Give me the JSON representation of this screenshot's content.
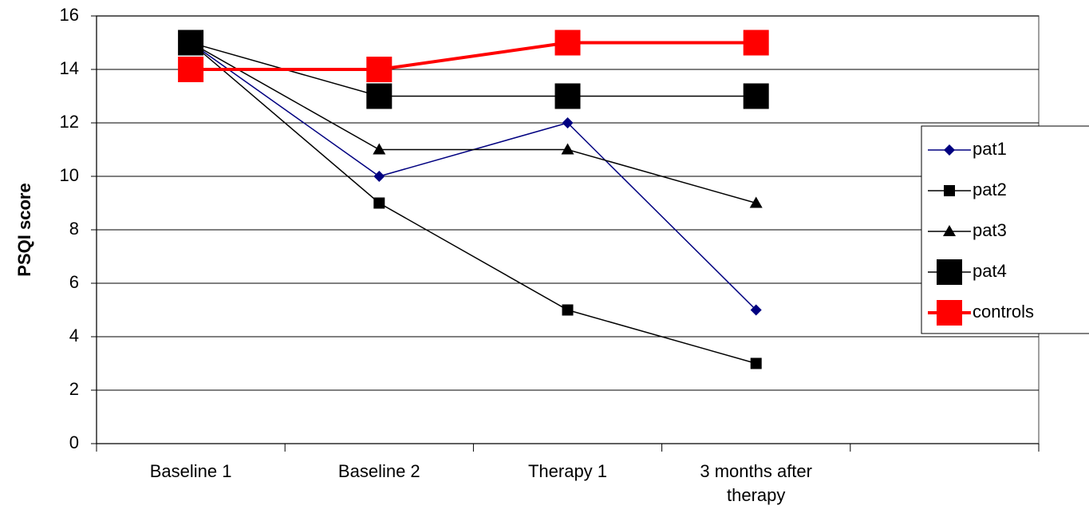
{
  "chart_data": {
    "type": "line",
    "y_label": "PSQI score",
    "categories": [
      "Baseline 1",
      "Baseline 2",
      "Therapy 1",
      "3 months after therapy",
      null
    ],
    "series": [
      {
        "name": "pat1",
        "color": "#000080",
        "marker": "diamond",
        "values": [
          15,
          10,
          12,
          5,
          null
        ]
      },
      {
        "name": "pat2",
        "color": "#000000",
        "marker": "square",
        "values": [
          15,
          9,
          5,
          3,
          null
        ]
      },
      {
        "name": "pat3",
        "color": "#000000",
        "marker": "triangle",
        "values": [
          15,
          11,
          11,
          9,
          null
        ]
      },
      {
        "name": "pat4",
        "color": "#000000",
        "marker": "big-square",
        "values": [
          15,
          13,
          13,
          13,
          null
        ]
      },
      {
        "name": "controls",
        "color": "#ff0000",
        "marker": "big-square",
        "values": [
          14,
          14,
          15,
          15,
          null
        ]
      }
    ],
    "ylim": [
      0,
      16
    ],
    "yticks": [
      0,
      2,
      4,
      6,
      8,
      10,
      12,
      14,
      16
    ],
    "grid": true,
    "legend": "right"
  }
}
